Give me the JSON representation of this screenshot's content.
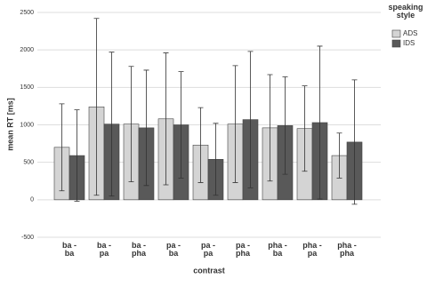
{
  "chart_data": {
    "type": "bar",
    "x_label": "contrast",
    "y_label": "mean RT [ms]",
    "legend_title": "speaking\nstyle",
    "legend": "right",
    "grid": true,
    "categories": [
      "ba -\nba",
      "ba -\npa",
      "ba -\npha",
      "pa -\nba",
      "pa -\npa",
      "pa -\npha",
      "pha -\nba",
      "pha -\npa",
      "pha -\npha"
    ],
    "series": [
      {
        "name": "ADS",
        "color": "#d4d4d4",
        "values": [
          700,
          1240,
          1010,
          1080,
          730,
          1010,
          960,
          950,
          590
        ],
        "errors": [
          580,
          1180,
          770,
          880,
          500,
          780,
          710,
          570,
          300
        ]
      },
      {
        "name": "IDS",
        "color": "#595959",
        "values": [
          590,
          1010,
          960,
          1000,
          540,
          1070,
          990,
          1030,
          770
        ],
        "errors": [
          610,
          960,
          770,
          710,
          480,
          910,
          650,
          1020,
          830
        ]
      }
    ],
    "ylim": [
      -500,
      2500
    ],
    "yticks": [
      -500,
      0,
      500,
      1000,
      1500,
      2000,
      2500
    ]
  }
}
